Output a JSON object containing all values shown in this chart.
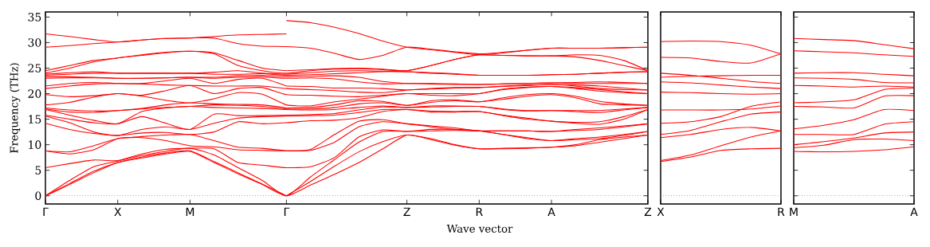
{
  "chart_data": [
    {
      "type": "line",
      "xlabel": "Wave vector",
      "ylabel": "Frequency (THz)",
      "ylim": [
        -1.6,
        36
      ],
      "categories": [
        "Γ",
        null,
        null,
        "X",
        null,
        null,
        "M",
        null,
        null,
        null,
        "Γ",
        null,
        null,
        null,
        null,
        "Z",
        null,
        null,
        "R",
        null,
        null,
        "A",
        null,
        null,
        null,
        "Z"
      ],
      "yticks": [
        0,
        5,
        10,
        15,
        20,
        25,
        30,
        35
      ],
      "ref_lines": [
        {
          "axis": "y",
          "value": 0,
          "color": "#0000ff",
          "line_style": "dotted"
        }
      ],
      "series": [
        {
          "color": "#ff0000",
          "values": [
            0,
            2.2,
            4.5,
            6.5,
            7.4,
            8.2,
            8.7,
            6.5,
            4.3,
            2.2,
            0,
            2.1,
            4.2,
            6.5,
            9.2,
            11.9,
            11.0,
            9.9,
            9.2,
            9.2,
            9.3,
            9.5,
            9.8,
            10.5,
            11.2,
            11.9
          ]
        },
        {
          "color": "#ff0000",
          "values": [
            0,
            2.4,
            4.8,
            6.5,
            7.6,
            8.4,
            8.8,
            6.7,
            4.5,
            2.3,
            0,
            null,
            null,
            null,
            null,
            null,
            null,
            null,
            null,
            null,
            null,
            null,
            null,
            null,
            null,
            null
          ]
        },
        {
          "color": "#ff0000",
          "values": [
            null,
            null,
            null,
            null,
            null,
            null,
            null,
            null,
            null,
            null,
            0,
            2.8,
            5.8,
            8.6,
            10.6,
            11.9,
            11.2,
            10.0,
            9.2,
            9.3,
            9.4,
            9.5,
            10.0,
            11.0,
            11.5,
            11.9
          ]
        },
        {
          "color": "#ff0000",
          "values": [
            0,
            3.0,
            5.7,
            6.8,
            7.9,
            8.7,
            9.3,
            8.0,
            5.5,
            3.0,
            0,
            3.7,
            7.1,
            10.5,
            12.6,
            12.6,
            12.7,
            12.8,
            12.7,
            12.0,
            11.2,
            10.8,
            11.0,
            11.2,
            11.8,
            12.6
          ]
        },
        {
          "color": "#ff0000",
          "values": [
            5.5,
            6.3,
            7.0,
            6.9,
            8.2,
            9.1,
            9.3,
            9.2,
            6.5,
            6.0,
            5.5,
            5.7,
            7.5,
            11.5,
            12.9,
            12.6,
            13.0,
            13.0,
            12.7,
            12.0,
            11.4,
            10.8,
            11.2,
            11.5,
            12.0,
            12.6
          ]
        },
        {
          "color": "#ff0000",
          "values": [
            8.8,
            8.2,
            9.0,
            11.2,
            11.4,
            10.8,
            9.8,
            9.6,
            9.0,
            8.9,
            8.8,
            8.9,
            10.5,
            13.5,
            14.5,
            14.1,
            13.5,
            13.0,
            12.7,
            12.7,
            12.7,
            12.6,
            12.8,
            13.0,
            13.5,
            14.1
          ]
        },
        {
          "color": "#ff0000",
          "values": [
            8.8,
            8.6,
            9.8,
            11.2,
            11.6,
            11.9,
            12.0,
            10.8,
            9.5,
            9.3,
            8.8,
            null,
            null,
            null,
            null,
            null,
            null,
            null,
            null,
            null,
            null,
            null,
            null,
            null,
            null,
            null
          ]
        },
        {
          "color": "#ff0000",
          "values": [
            null,
            null,
            null,
            null,
            null,
            null,
            null,
            null,
            null,
            null,
            8.8,
            9.1,
            12.0,
            14.6,
            14.9,
            14.1,
            13.7,
            13.3,
            12.7,
            12.7,
            12.7,
            12.6,
            13.0,
            13.3,
            13.7,
            14.1
          ]
        },
        {
          "color": "#ff0000",
          "values": [
            14.2,
            13.0,
            12.2,
            11.8,
            12.3,
            12.4,
            12.0,
            12.5,
            14.5,
            14.1,
            14.3,
            14.7,
            14.8,
            15.3,
            16.5,
            16.9,
            16.4,
            16.4,
            16.5,
            15.7,
            15.0,
            14.6,
            14.2,
            14.0,
            15.0,
            16.9
          ]
        },
        {
          "color": "#ff0000",
          "values": [
            15.6,
            14.3,
            12.5,
            11.8,
            13.0,
            13.5,
            13.0,
            14.2,
            15.2,
            15.5,
            15.6,
            15.7,
            15.8,
            16.3,
            16.9,
            16.9,
            16.6,
            16.5,
            16.5,
            15.8,
            15.2,
            14.6,
            14.4,
            14.5,
            15.5,
            16.9
          ]
        },
        {
          "color": "#ff0000",
          "values": [
            15.8,
            15.0,
            14.3,
            14.1,
            15.5,
            14.2,
            13.0,
            16.0,
            15.7,
            15.7,
            15.8,
            15.9,
            16.1,
            16.8,
            17.4,
            17.3,
            17.4,
            17.5,
            17.5,
            16.9,
            16.6,
            16.7,
            16.5,
            16.3,
            16.8,
            17.3
          ]
        },
        {
          "color": "#ff0000",
          "values": [
            16.9,
            15.8,
            14.8,
            14.1,
            16.5,
            17.2,
            17.5,
            17.3,
            17.2,
            17.1,
            16.9,
            16.8,
            16.9,
            17.3,
            17.6,
            17.3,
            17.6,
            17.6,
            17.5,
            17.0,
            16.7,
            16.7,
            16.7,
            16.7,
            17.0,
            17.3
          ]
        },
        {
          "color": "#ff0000",
          "values": [
            17.0,
            16.4,
            16.3,
            16.7,
            17.0,
            17.3,
            17.5,
            17.8,
            17.7,
            17.5,
            17.0,
            17.0,
            17.3,
            18.0,
            18.2,
            17.7,
            18.3,
            18.6,
            18.4,
            18.9,
            19.5,
            19.8,
            19.2,
            18.0,
            17.8,
            17.7
          ]
        },
        {
          "color": "#ff0000",
          "values": [
            17.2,
            16.8,
            16.6,
            16.7,
            17.1,
            17.8,
            18.2,
            18.0,
            17.9,
            17.8,
            17.2,
            null,
            null,
            null,
            null,
            null,
            null,
            null,
            null,
            null,
            null,
            null,
            null,
            null,
            null,
            null
          ]
        },
        {
          "color": "#ff0000",
          "values": [
            null,
            null,
            null,
            null,
            null,
            null,
            null,
            null,
            null,
            null,
            17.2,
            17.3,
            17.8,
            18.6,
            18.5,
            17.7,
            18.6,
            18.8,
            18.4,
            19.2,
            19.8,
            20.0,
            19.5,
            18.5,
            18.0,
            17.7
          ]
        },
        {
          "color": "#ff0000",
          "values": [
            17.8,
            18.3,
            19.3,
            20.0,
            19.5,
            18.7,
            18.2,
            19.0,
            20.2,
            19.9,
            17.8,
            17.6,
            18.4,
            18.9,
            19.5,
            20.0,
            19.7,
            19.6,
            20.0,
            20.8,
            21.2,
            21.4,
            21.0,
            20.5,
            20.2,
            20.0
          ]
        },
        {
          "color": "#ff0000",
          "values": [
            19.8,
            19.4,
            19.6,
            20.0,
            19.7,
            20.6,
            21.6,
            20.0,
            21.0,
            21.2,
            19.8,
            19.7,
            19.5,
            19.4,
            19.7,
            20.0,
            20.0,
            20.0,
            20.0,
            20.9,
            21.3,
            21.4,
            21.2,
            20.8,
            20.4,
            20.0
          ]
        },
        {
          "color": "#ff0000",
          "values": [
            21.0,
            21.5,
            21.9,
            22.0,
            21.9,
            21.7,
            21.6,
            21.5,
            21.5,
            21.5,
            21.0,
            20.8,
            20.6,
            20.3,
            20.2,
            20.7,
            20.9,
            21.1,
            21.2,
            21.4,
            21.6,
            21.8,
            21.5,
            21.0,
            20.8,
            20.7
          ]
        },
        {
          "color": "#ff0000",
          "values": [
            21.5,
            22.0,
            22.2,
            22.0,
            22.0,
            22.5,
            23.0,
            22.0,
            22.8,
            23.0,
            21.5,
            null,
            null,
            null,
            null,
            null,
            null,
            null,
            null,
            null,
            null,
            null,
            null,
            null,
            null,
            null
          ]
        },
        {
          "color": "#ff0000",
          "values": [
            null,
            null,
            null,
            null,
            null,
            null,
            null,
            null,
            null,
            null,
            21.5,
            21.4,
            21.1,
            21.1,
            21.0,
            20.7,
            21.0,
            21.2,
            21.2,
            21.5,
            21.7,
            21.8,
            21.7,
            21.5,
            21.1,
            20.7
          ]
        },
        {
          "color": "#ff0000",
          "values": [
            23.0,
            23.1,
            23.1,
            23.0,
            23.0,
            23.1,
            23.2,
            23.0,
            23.2,
            23.3,
            23.0,
            23.1,
            22.9,
            22.3,
            21.9,
            22.0,
            21.9,
            21.8,
            21.8,
            21.9,
            22.0,
            22.1,
            22.0,
            22.0,
            22.0,
            22.0
          ]
        },
        {
          "color": "#ff0000",
          "values": [
            23.3,
            23.3,
            23.2,
            23.0,
            23.0,
            23.1,
            23.2,
            23.2,
            23.5,
            23.6,
            23.3,
            null,
            null,
            null,
            null,
            null,
            null,
            null,
            null,
            null,
            null,
            null,
            null,
            null,
            null,
            null
          ]
        },
        {
          "color": "#ff0000",
          "values": [
            null,
            null,
            null,
            null,
            null,
            null,
            null,
            null,
            null,
            null,
            23.3,
            23.4,
            23.5,
            23.2,
            22.4,
            22.0,
            22.0,
            21.9,
            21.8,
            21.9,
            22.0,
            22.1,
            22.2,
            22.3,
            22.2,
            22.0
          ]
        },
        {
          "color": "#ff0000",
          "values": [
            23.6,
            23.8,
            24.0,
            24.0,
            24.0,
            24.0,
            24.0,
            23.8,
            23.8,
            23.9,
            23.6,
            23.7,
            23.9,
            24.1,
            24.3,
            24.3,
            24.0,
            23.8,
            23.6,
            23.6,
            23.6,
            23.7,
            23.8,
            24.0,
            24.2,
            24.3
          ]
        },
        {
          "color": "#ff0000",
          "values": [
            23.8,
            24.1,
            24.3,
            24.0,
            24.0,
            24.0,
            24.0,
            24.2,
            24.5,
            24.0,
            23.8,
            null,
            null,
            null,
            null,
            null,
            null,
            null,
            null,
            null,
            null,
            null,
            null,
            null,
            null,
            null
          ]
        },
        {
          "color": "#ff0000",
          "values": [
            null,
            null,
            null,
            null,
            null,
            null,
            null,
            null,
            null,
            null,
            23.8,
            24.1,
            24.4,
            24.5,
            24.4,
            24.3,
            24.1,
            23.9,
            23.6,
            23.6,
            23.6,
            23.7,
            23.8,
            24.0,
            24.2,
            24.3
          ]
        },
        {
          "color": "#ff0000",
          "values": [
            24.0,
            25.0,
            26.2,
            27.0,
            27.5,
            28.0,
            28.3,
            27.8,
            25.5,
            24.5,
            24.0,
            24.5,
            24.8,
            24.9,
            24.7,
            24.5,
            25.5,
            26.7,
            27.6,
            27.5,
            27.4,
            27.4,
            27.2,
            26.5,
            25.5,
            24.5
          ]
        },
        {
          "color": "#ff0000",
          "values": [
            24.5,
            25.5,
            26.5,
            27.0,
            27.6,
            28.1,
            28.3,
            28.0,
            26.5,
            25.0,
            24.5,
            null,
            null,
            null,
            null,
            null,
            null,
            null,
            null,
            null,
            null,
            null,
            null,
            null,
            null,
            null
          ]
        },
        {
          "color": "#ff0000",
          "values": [
            null,
            null,
            null,
            null,
            null,
            null,
            null,
            null,
            null,
            null,
            24.5,
            24.7,
            24.9,
            25.0,
            24.8,
            24.5,
            25.5,
            26.7,
            27.6,
            27.5,
            27.4,
            27.4,
            27.6,
            27.5,
            26.5,
            24.5
          ]
        },
        {
          "color": "#ff0000",
          "values": [
            29.1,
            29.4,
            29.8,
            30.1,
            30.5,
            30.8,
            30.9,
            30.9,
            29.8,
            29.3,
            29.2,
            28.9,
            27.9,
            26.7,
            27.5,
            29.1,
            28.7,
            28.2,
            27.8,
            28.1,
            28.5,
            28.9,
            28.9,
            28.9,
            29.0,
            29.1
          ]
        },
        {
          "color": "#ff0000",
          "values": [
            31.7,
            31.2,
            30.6,
            30.1,
            30.5,
            30.8,
            30.9,
            31.2,
            31.5,
            31.6,
            31.7,
            null,
            null,
            null,
            null,
            null,
            null,
            null,
            null,
            null,
            null,
            null,
            null,
            null,
            null,
            null
          ]
        },
        {
          "color": "#ff0000",
          "values": [
            null,
            null,
            null,
            null,
            null,
            null,
            null,
            null,
            null,
            null,
            34.3,
            33.9,
            33.0,
            31.8,
            30.3,
            29.1,
            28.6,
            28.1,
            27.6,
            28.0,
            28.5,
            28.9,
            28.9,
            28.9,
            29.0,
            29.1
          ]
        }
      ]
    },
    {
      "type": "line",
      "ylim": [
        -1.6,
        36
      ],
      "tick_labels": "x",
      "categories": [
        "X",
        null,
        null,
        null,
        "R"
      ],
      "ref_lines": [
        {
          "axis": "y",
          "value": 0,
          "color": "#0000ff",
          "line_style": "dotted"
        }
      ],
      "series": [
        {
          "color": "#ff0000",
          "values": [
            30.2,
            30.3,
            30.2,
            29.5,
            27.8
          ]
        },
        {
          "color": "#ff0000",
          "values": [
            27.1,
            27.0,
            26.3,
            26.0,
            27.8
          ]
        },
        {
          "color": "#ff0000",
          "values": [
            24.0,
            23.6,
            23.0,
            22.4,
            22.0
          ]
        },
        {
          "color": "#ff0000",
          "values": [
            23.2,
            23.4,
            23.5,
            23.6,
            23.6
          ]
        },
        {
          "color": "#ff0000",
          "values": [
            22.3,
            22.1,
            21.7,
            21.3,
            21.0
          ]
        },
        {
          "color": "#ff0000",
          "values": [
            20.3,
            20.2,
            20.0,
            19.9,
            20.0
          ]
        },
        {
          "color": "#ff0000",
          "values": [
            16.8,
            16.8,
            16.8,
            17.0,
            17.6
          ]
        },
        {
          "color": "#ff0000",
          "values": [
            14.2,
            14.5,
            15.5,
            17.5,
            18.4
          ]
        },
        {
          "color": "#ff0000",
          "values": [
            12.0,
            12.8,
            14.5,
            16.0,
            16.4
          ]
        },
        {
          "color": "#ff0000",
          "values": [
            11.4,
            12.0,
            13.0,
            13.4,
            12.7
          ]
        },
        {
          "color": "#ff0000",
          "values": [
            6.9,
            8.0,
            9.8,
            11.5,
            12.7
          ]
        },
        {
          "color": "#ff0000",
          "values": [
            6.7,
            7.6,
            8.9,
            9.2,
            9.3
          ]
        }
      ]
    },
    {
      "type": "line",
      "ylim": [
        -1.6,
        36
      ],
      "tick_labels": "x",
      "categories": [
        "M",
        null,
        null,
        null,
        "A"
      ],
      "yticks": [
        {
          "value": 0,
          "label": null
        },
        {
          "value": 5,
          "label": null
        },
        {
          "value": 10,
          "label": null
        },
        {
          "value": 15,
          "label": null
        },
        {
          "value": 20,
          "label": null
        },
        {
          "value": 25,
          "label": null
        },
        {
          "value": 30,
          "label": null
        },
        {
          "value": 35,
          "label": null
        }
      ],
      "ref_lines": [
        {
          "axis": "y",
          "value": 0,
          "color": "#0000ff",
          "line_style": "dotted"
        }
      ],
      "series": [
        {
          "color": "#ff0000",
          "values": [
            8.7,
            8.6,
            8.7,
            9.0,
            9.6
          ]
        },
        {
          "color": "#ff0000",
          "values": [
            9.4,
            9.9,
            11.0,
            11.1,
            10.8
          ]
        },
        {
          "color": "#ff0000",
          "values": [
            10.0,
            10.6,
            11.3,
            12.3,
            12.5
          ]
        },
        {
          "color": "#ff0000",
          "values": [
            12.0,
            12.0,
            12.0,
            14.0,
            14.5
          ]
        },
        {
          "color": "#ff0000",
          "values": [
            13.1,
            13.8,
            14.9,
            16.9,
            16.7
          ]
        },
        {
          "color": "#ff0000",
          "values": [
            17.5,
            17.4,
            17.2,
            19.5,
            19.6
          ]
        },
        {
          "color": "#ff0000",
          "values": [
            18.2,
            18.4,
            18.8,
            20.8,
            21.1
          ]
        },
        {
          "color": "#ff0000",
          "values": [
            21.6,
            21.5,
            21.3,
            21.5,
            21.3
          ]
        },
        {
          "color": "#ff0000",
          "values": [
            23.1,
            23.0,
            22.8,
            22.2,
            22.1
          ]
        },
        {
          "color": "#ff0000",
          "values": [
            24.0,
            24.1,
            24.1,
            23.8,
            23.5
          ]
        },
        {
          "color": "#ff0000",
          "values": [
            28.4,
            28.2,
            28.0,
            27.6,
            27.3
          ]
        },
        {
          "color": "#ff0000",
          "values": [
            30.8,
            30.6,
            30.4,
            29.6,
            28.8
          ]
        }
      ]
    }
  ]
}
